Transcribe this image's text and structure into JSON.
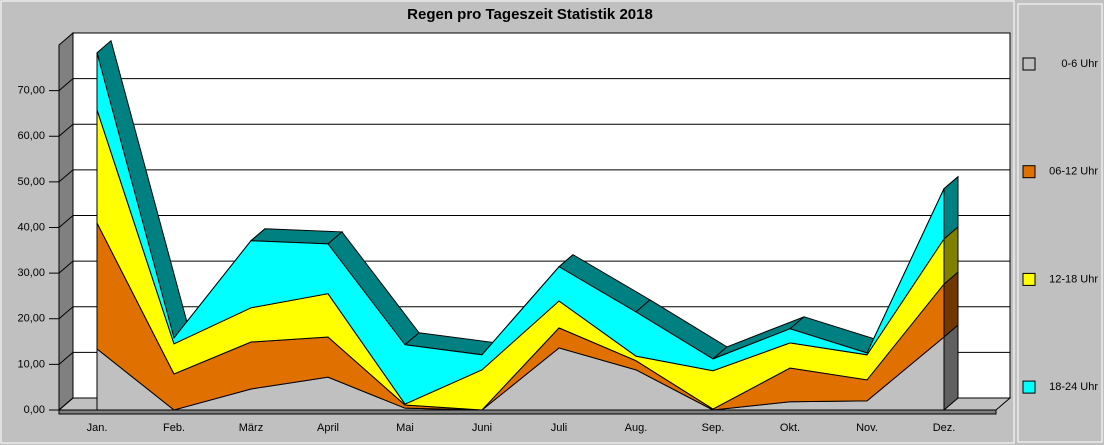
{
  "chart_data": {
    "type": "area3d",
    "title": "Regen pro Tageszeit Statistik 2018",
    "categories": [
      "Jan.",
      "Feb.",
      "März",
      "April",
      "Mai",
      "Juni",
      "Juli",
      "Aug.",
      "Sep.",
      "Okt.",
      "Nov.",
      "Dez."
    ],
    "stacked": true,
    "series": [
      {
        "name": "0-6 Uhr",
        "color": "#c0c0c0",
        "values": [
          13.4,
          0,
          4.6,
          7.2,
          0.4,
          0,
          13.6,
          8.8,
          0,
          1.8,
          2,
          16
        ]
      },
      {
        "name": "06-12 Uhr",
        "color": "#e07000",
        "values": [
          27.6,
          7.9,
          10.3,
          8.8,
          0.7,
          0,
          4.4,
          2,
          0.2,
          7.4,
          4.6,
          11.6
        ]
      },
      {
        "name": "12-18 Uhr",
        "color": "#ffff00",
        "values": [
          24.8,
          6.6,
          7.5,
          9.5,
          0.2,
          8.8,
          5.9,
          1,
          8.4,
          5.5,
          5.5,
          9.9
        ]
      },
      {
        "name": "18-24 Uhr",
        "color": "#00ffff",
        "values": [
          12.5,
          1.3,
          14.7,
          10.9,
          13,
          3.3,
          7.5,
          9.7,
          2.6,
          3.1,
          0.4,
          11
        ]
      }
    ],
    "ylim": [
      0,
      80
    ],
    "yticks": [
      {
        "value": 0,
        "label": "0,00"
      },
      {
        "value": 10,
        "label": "10,00"
      },
      {
        "value": 20,
        "label": "20,00"
      },
      {
        "value": 30,
        "label": "30,00"
      },
      {
        "value": 40,
        "label": "40,00"
      },
      {
        "value": 50,
        "label": "50,00"
      },
      {
        "value": 60,
        "label": "60,00"
      },
      {
        "value": 70,
        "label": "70,00"
      }
    ],
    "grid": true,
    "legend": "right"
  }
}
